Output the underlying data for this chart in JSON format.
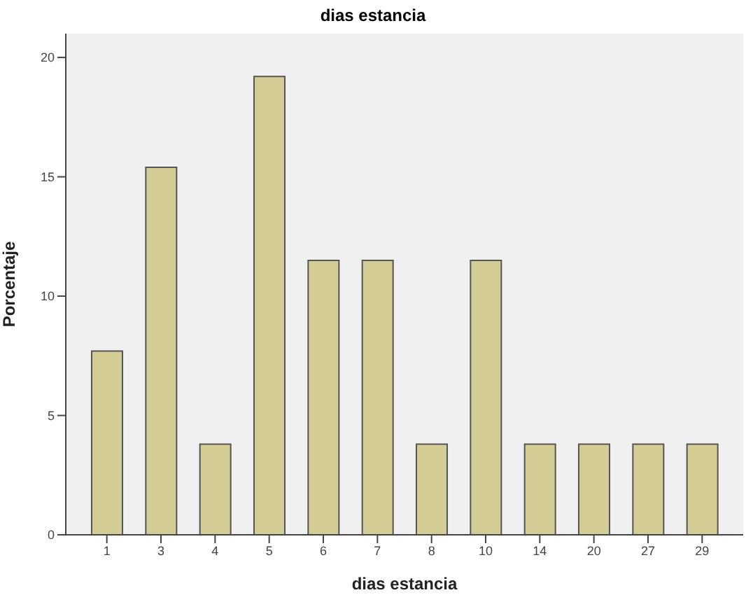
{
  "chart_data": {
    "type": "bar",
    "title": "dias estancia",
    "xlabel": "dias estancia",
    "ylabel": "Porcentaje",
    "categories": [
      "1",
      "3",
      "4",
      "5",
      "6",
      "7",
      "8",
      "10",
      "14",
      "20",
      "27",
      "29"
    ],
    "values": [
      7.7,
      15.4,
      3.8,
      19.2,
      11.5,
      11.5,
      3.8,
      11.5,
      3.8,
      3.8,
      3.8,
      3.8
    ],
    "color": "#d3cd95",
    "ylim": [
      0,
      21
    ],
    "yticks": [
      0,
      5,
      10,
      15,
      20
    ],
    "grid": false,
    "legend": false
  }
}
